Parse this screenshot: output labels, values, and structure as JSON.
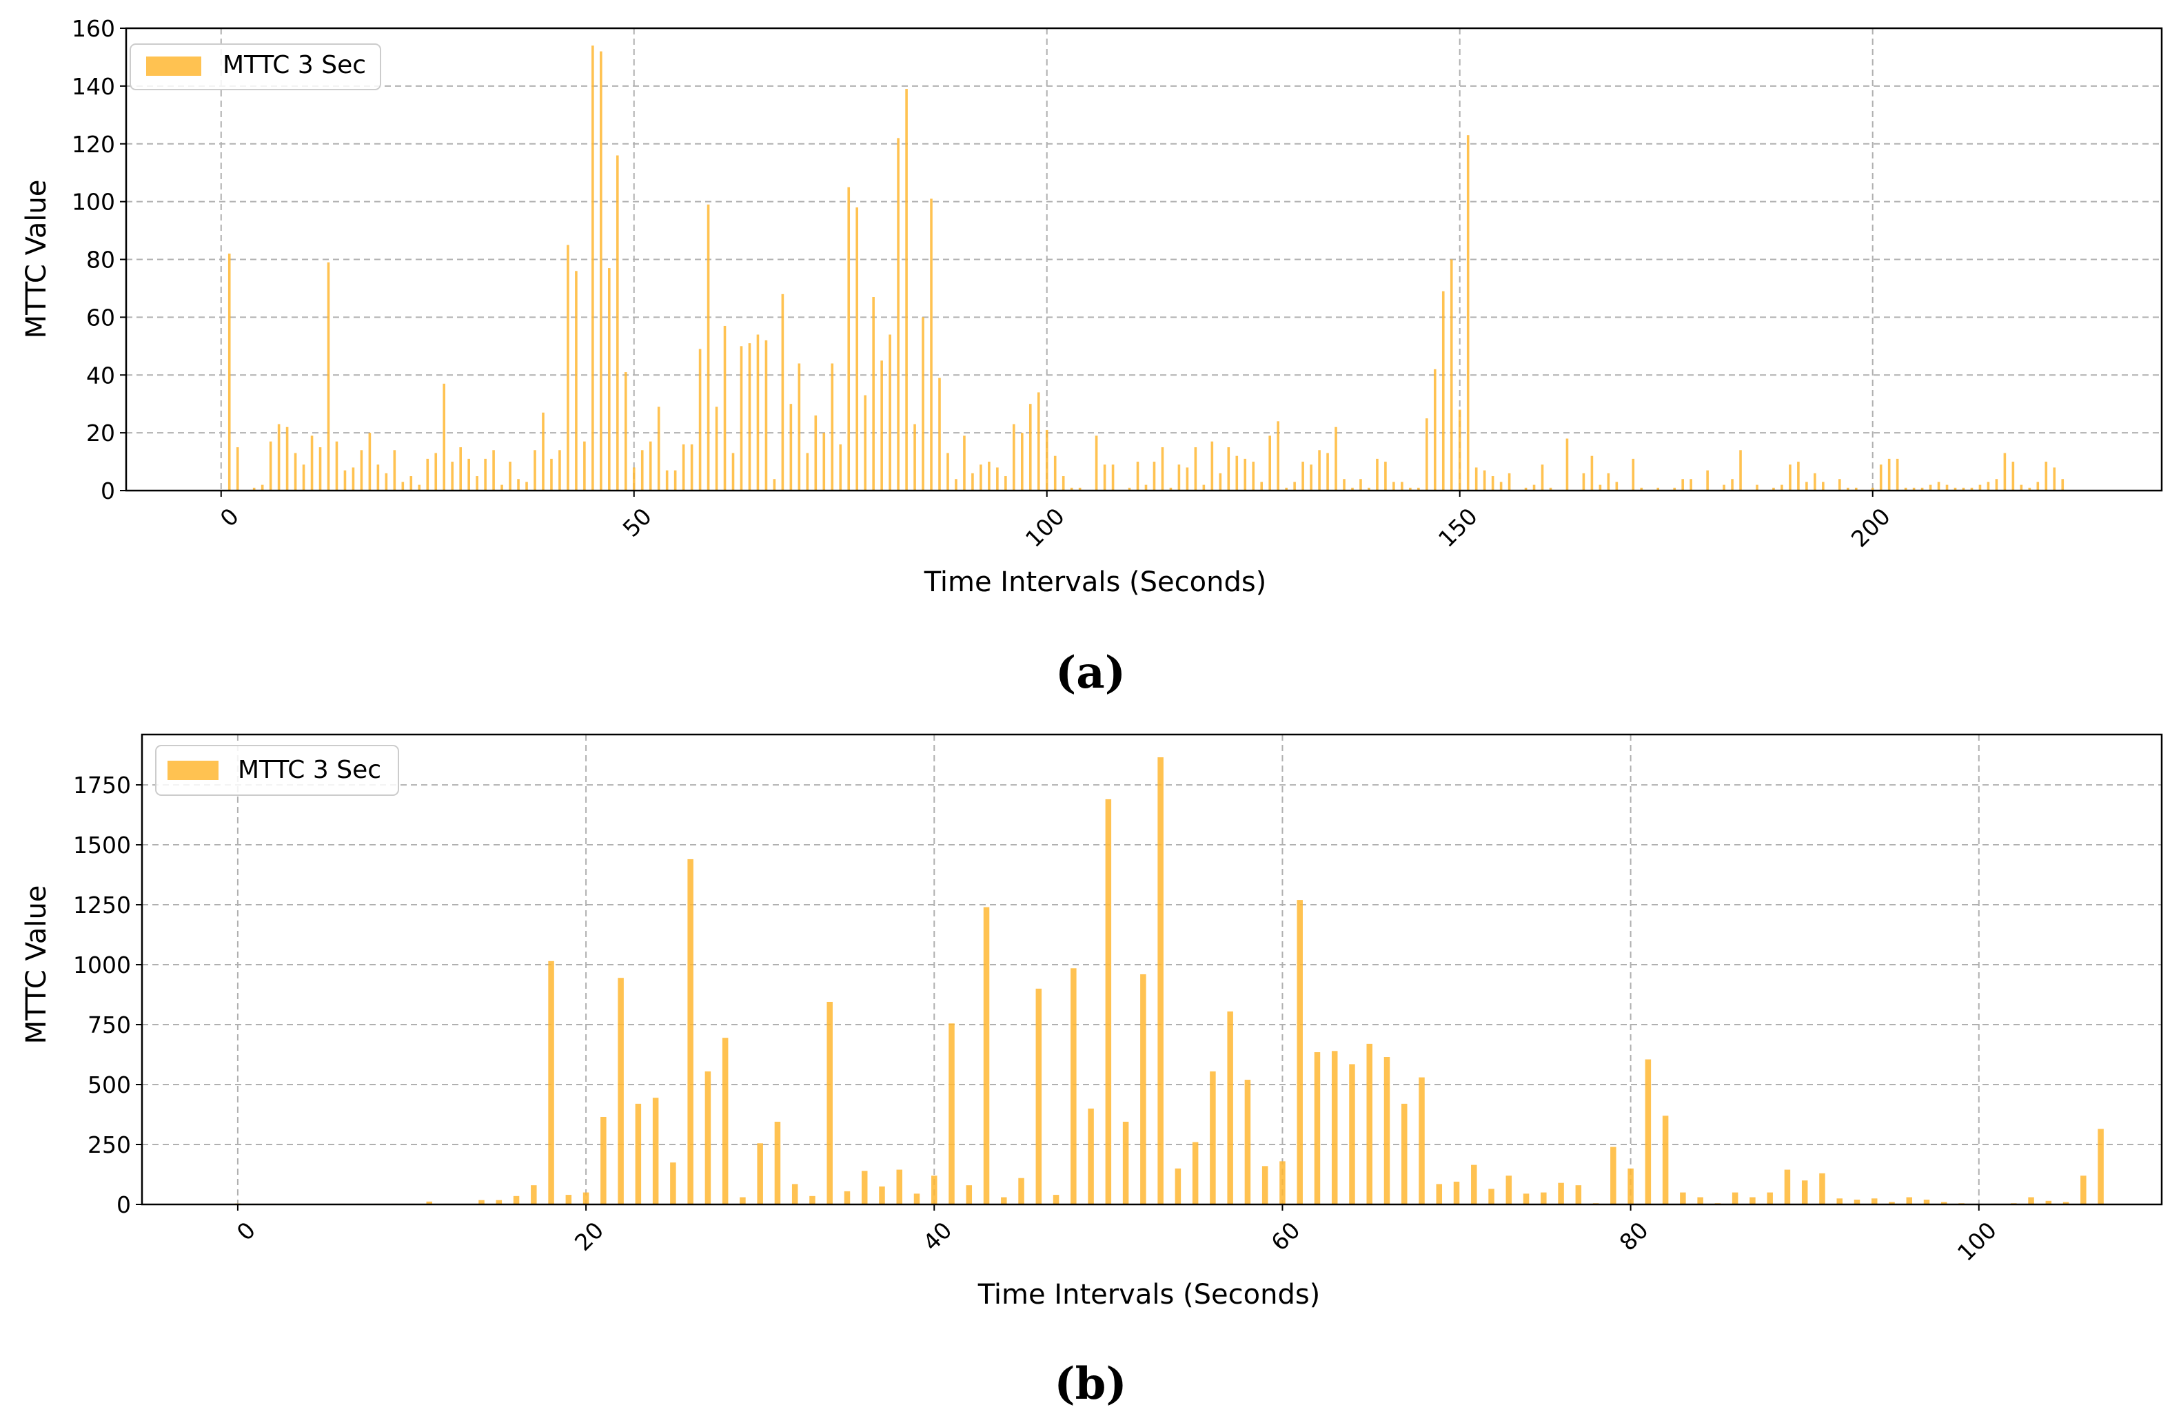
{
  "chart_data": [
    {
      "type": "bar",
      "panel": "(a)",
      "xlabel": "Time Intervals (Seconds)",
      "ylabel": "MTTC Value",
      "xlim": [
        -11.5,
        235
      ],
      "ylim": [
        0,
        160
      ],
      "xticks": [
        0,
        50,
        100,
        150,
        200
      ],
      "yticks": [
        0,
        20,
        40,
        60,
        80,
        100,
        120,
        140,
        160
      ],
      "grid": true,
      "legend_position": "top-left",
      "color": "#ffb733",
      "series": [
        {
          "name": "MTTC 3 Sec",
          "x": [
            1,
            2,
            4,
            5,
            6,
            7,
            8,
            9,
            10,
            11,
            12,
            13,
            14,
            15,
            16,
            17,
            18,
            19,
            20,
            21,
            22,
            23,
            24,
            25,
            26,
            27,
            28,
            29,
            30,
            31,
            32,
            33,
            34,
            35,
            36,
            37,
            38,
            39,
            40,
            41,
            42,
            43,
            44,
            45,
            46,
            47,
            48,
            49,
            50,
            51,
            52,
            53,
            54,
            55,
            56,
            57,
            58,
            59,
            60,
            61,
            62,
            63,
            64,
            65,
            66,
            67,
            68,
            69,
            70,
            71,
            72,
            73,
            74,
            75,
            76,
            77,
            78,
            79,
            80,
            81,
            82,
            83,
            84,
            85,
            86,
            87,
            88,
            89,
            90,
            91,
            92,
            93,
            94,
            95,
            96,
            97,
            98,
            99,
            100,
            101,
            102,
            103,
            104,
            106,
            107,
            108,
            110,
            111,
            112,
            113,
            114,
            115,
            116,
            117,
            118,
            119,
            120,
            121,
            122,
            123,
            124,
            125,
            126,
            127,
            128,
            129,
            130,
            131,
            132,
            133,
            134,
            135,
            136,
            137,
            138,
            139,
            140,
            141,
            142,
            143,
            144,
            145,
            146,
            147,
            148,
            149,
            150,
            151,
            152,
            153,
            154,
            155,
            156,
            158,
            159,
            160,
            161,
            163,
            165,
            166,
            167,
            168,
            169,
            171,
            172,
            174,
            176,
            177,
            178,
            180,
            182,
            183,
            184,
            186,
            188,
            189,
            190,
            191,
            192,
            193,
            194,
            196,
            197,
            198,
            200,
            201,
            202,
            203,
            204,
            205,
            206,
            207,
            208,
            209,
            210,
            211,
            212,
            213,
            214,
            215,
            216,
            217,
            218,
            219,
            220,
            221,
            222,
            223
          ],
          "values": [
            82,
            15,
            1,
            2,
            17,
            23,
            22,
            13,
            9,
            19,
            15,
            79,
            17,
            7,
            8,
            14,
            20,
            9,
            6,
            14,
            3,
            5,
            2,
            11,
            13,
            37,
            10,
            15,
            11,
            5,
            11,
            14,
            2,
            10,
            4,
            3,
            14,
            27,
            11,
            14,
            85,
            76,
            17,
            154,
            152,
            77,
            116,
            41,
            8,
            14,
            17,
            29,
            7,
            7,
            16,
            16,
            49,
            99,
            29,
            57,
            13,
            50,
            51,
            54,
            52,
            4,
            68,
            30,
            44,
            13,
            26,
            20,
            44,
            16,
            105,
            98,
            33,
            67,
            45,
            54,
            122,
            139,
            23,
            60,
            101,
            39,
            13,
            4,
            19,
            6,
            9,
            10,
            8,
            5,
            23,
            20,
            30,
            34,
            21,
            12,
            5,
            1,
            1,
            19,
            9,
            9,
            1,
            10,
            2,
            10,
            15,
            1,
            9,
            8,
            15,
            2,
            17,
            6,
            15,
            12,
            11,
            10,
            3,
            19,
            24,
            1,
            3,
            10,
            9,
            14,
            13,
            22,
            4,
            1,
            4,
            1,
            11,
            10,
            3,
            3,
            1,
            1,
            25,
            42,
            69,
            80,
            28,
            123,
            8,
            7,
            5,
            3,
            6,
            1,
            2,
            9,
            1,
            18,
            6,
            12,
            2,
            6,
            3,
            11,
            1,
            1,
            1,
            4,
            4,
            7,
            2,
            4,
            14,
            2,
            1,
            2,
            9,
            10,
            3,
            6,
            3,
            4,
            1,
            1,
            1,
            9,
            11,
            11,
            1,
            1,
            1,
            2,
            3,
            2,
            1,
            1,
            1,
            2,
            3,
            4,
            13,
            10,
            2,
            1,
            3,
            10,
            8,
            4
          ]
        }
      ]
    },
    {
      "type": "bar",
      "panel": "(b)",
      "xlabel": "Time Intervals (Seconds)",
      "ylabel": "MTTC Value",
      "xlim": [
        -5.5,
        110.5
      ],
      "ylim": [
        0,
        1960
      ],
      "xticks": [
        0,
        20,
        40,
        60,
        80,
        100
      ],
      "yticks": [
        0,
        250,
        500,
        750,
        1000,
        1250,
        1500,
        1750
      ],
      "grid": true,
      "legend_position": "top-left",
      "color": "#ffb733",
      "series": [
        {
          "name": "MTTC 3 Sec",
          "x": [
            0,
            1,
            2,
            6,
            7,
            8,
            9,
            10,
            11,
            12,
            14,
            15,
            16,
            17,
            18,
            19,
            20,
            21,
            22,
            23,
            24,
            25,
            26,
            27,
            28,
            29,
            30,
            31,
            32,
            33,
            34,
            35,
            36,
            37,
            38,
            39,
            40,
            41,
            42,
            43,
            44,
            45,
            46,
            47,
            48,
            49,
            50,
            51,
            52,
            53,
            54,
            55,
            56,
            57,
            58,
            59,
            60,
            61,
            62,
            63,
            64,
            65,
            66,
            67,
            68,
            69,
            70,
            71,
            72,
            73,
            74,
            75,
            76,
            77,
            78,
            79,
            80,
            81,
            82,
            83,
            84,
            85,
            86,
            87,
            88,
            89,
            90,
            91,
            92,
            93,
            94,
            95,
            96,
            97,
            98,
            99,
            100,
            101,
            102,
            103,
            104,
            105,
            106,
            107
          ],
          "values": [
            4,
            3,
            3,
            3,
            3,
            3,
            3,
            3,
            12,
            3,
            18,
            18,
            35,
            80,
            1015,
            40,
            50,
            365,
            945,
            420,
            445,
            175,
            1440,
            555,
            695,
            30,
            255,
            345,
            85,
            35,
            845,
            55,
            140,
            75,
            145,
            45,
            120,
            755,
            80,
            1240,
            30,
            110,
            900,
            40,
            985,
            400,
            1690,
            345,
            960,
            1865,
            150,
            260,
            555,
            805,
            520,
            160,
            180,
            1270,
            635,
            640,
            585,
            670,
            615,
            420,
            530,
            85,
            95,
            165,
            65,
            120,
            45,
            50,
            90,
            80,
            5,
            240,
            150,
            605,
            370,
            50,
            30,
            5,
            50,
            30,
            50,
            145,
            100,
            130,
            25,
            20,
            25,
            10,
            30,
            20,
            10,
            5,
            3,
            3,
            5,
            30,
            15,
            10,
            120,
            315
          ]
        }
      ]
    }
  ],
  "legend": {
    "a": "MTTC 3 Sec",
    "b": "MTTC 3 Sec"
  },
  "captions": {
    "a": "(a)",
    "b": "(b)"
  }
}
